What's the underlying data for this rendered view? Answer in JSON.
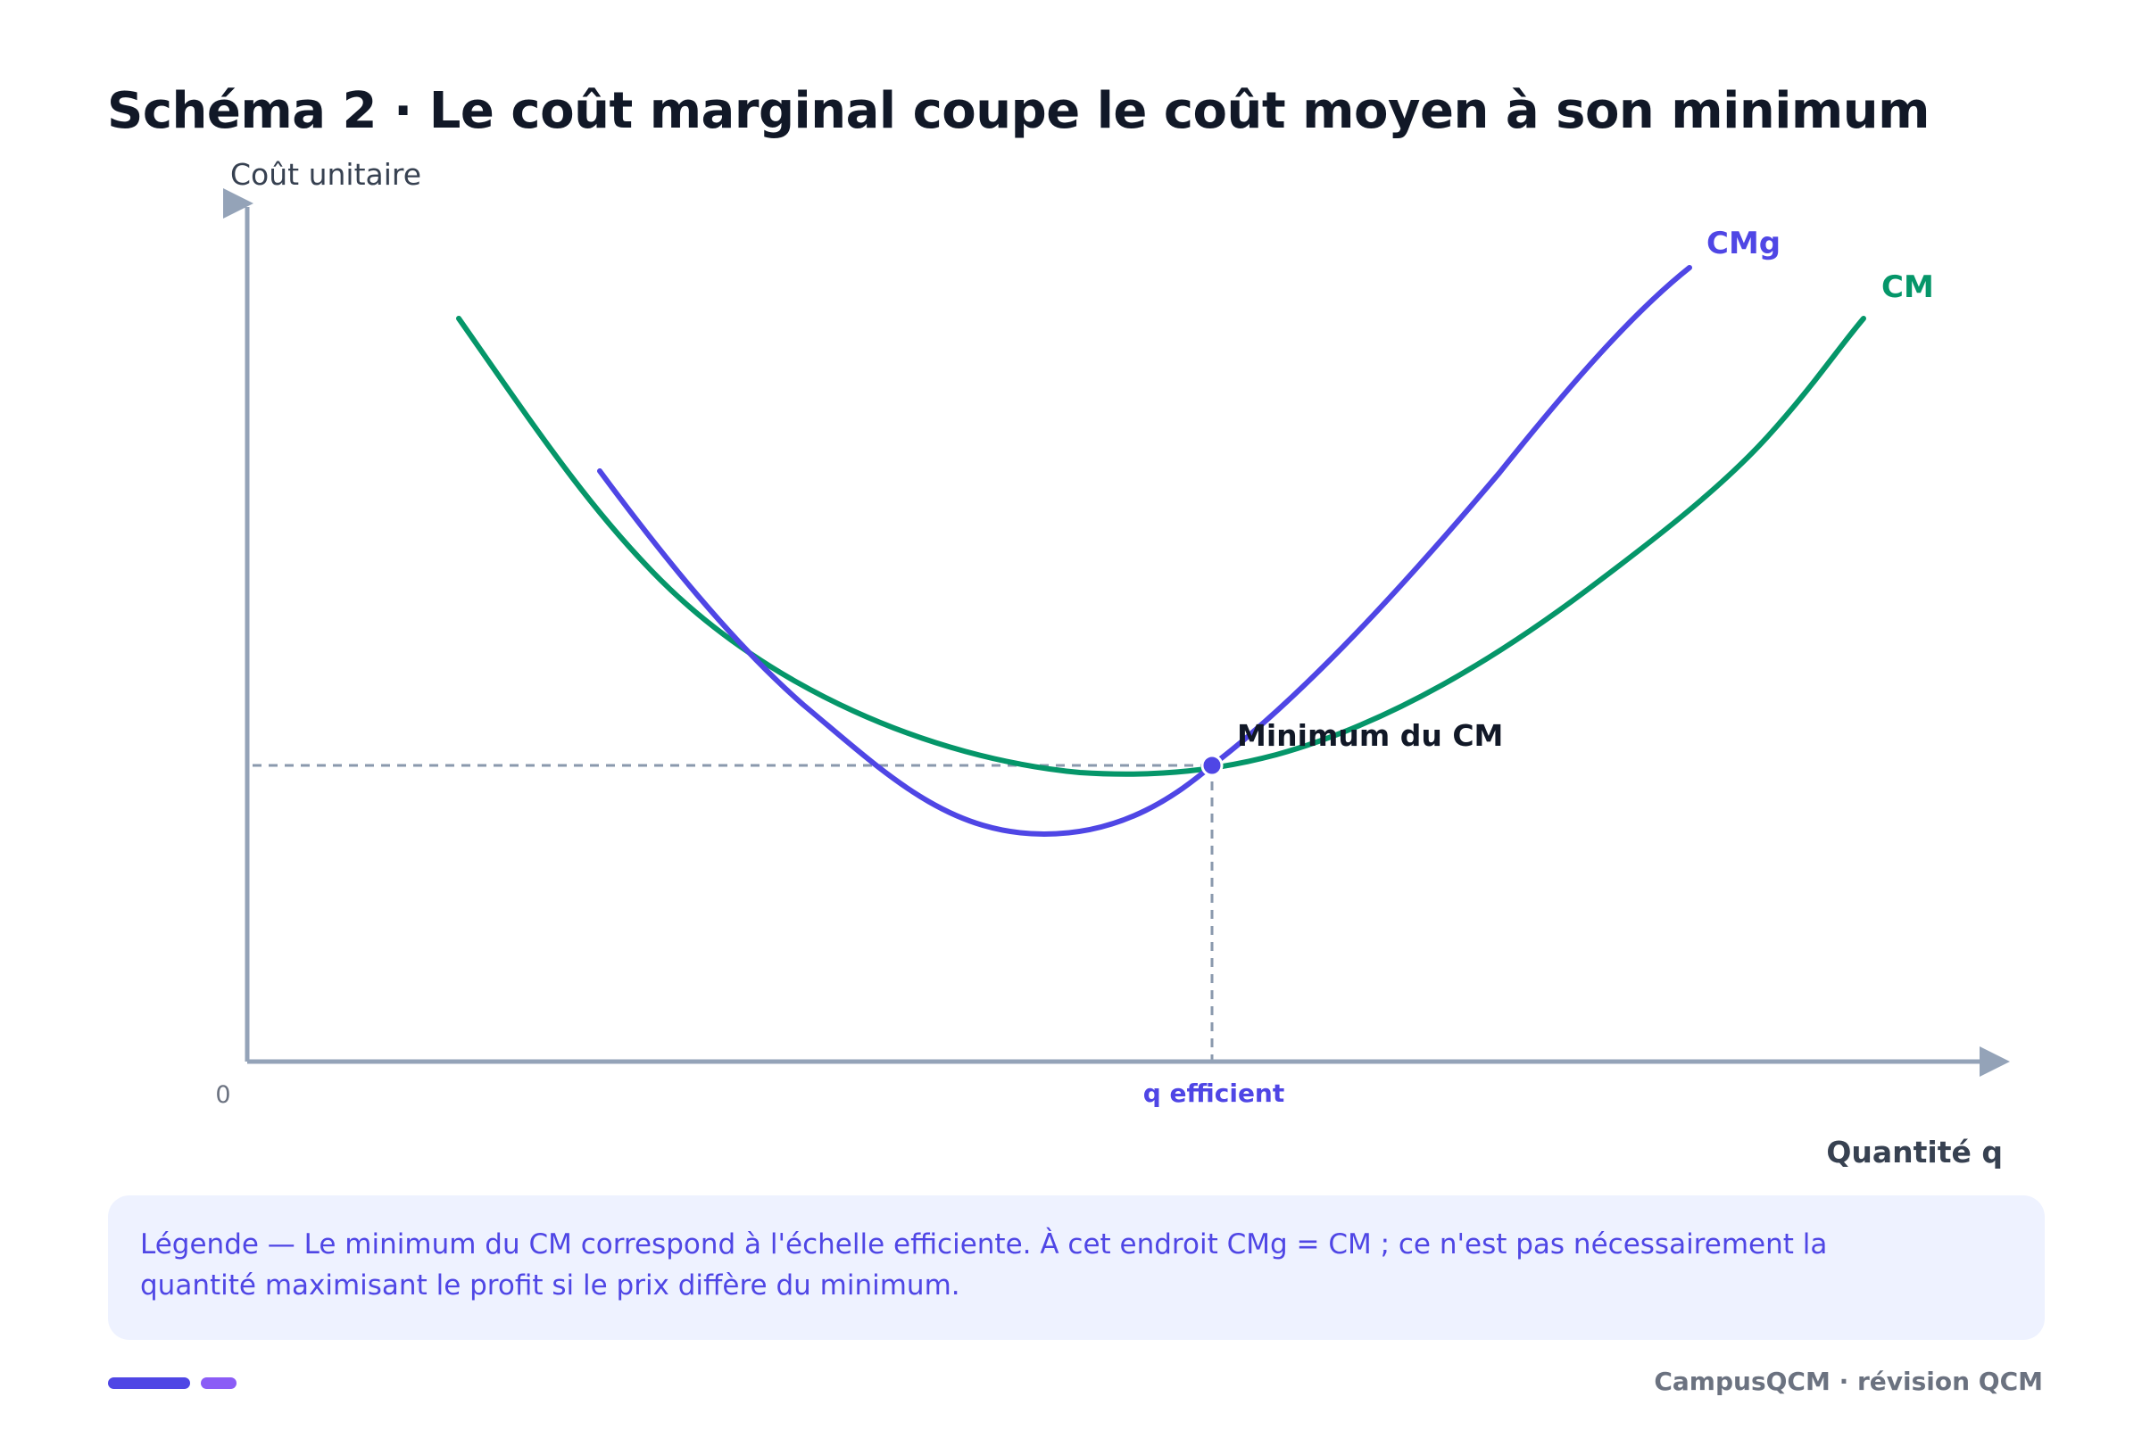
{
  "title": "Schéma 2 · Le coût marginal coupe le coût moyen à son minimum",
  "diagram": {
    "y_axis_label": "Coût unitaire",
    "x_axis_label": "Quantité q",
    "origin_label": "0",
    "x_marker_label": "q efficient",
    "point_label": "Minimum du CM",
    "curves": [
      {
        "name": "CMg",
        "color": "#4f46e5"
      },
      {
        "name": "CM",
        "color": "#059669"
      }
    ]
  },
  "legend": {
    "text": "Légende — Le minimum du CM correspond à l'échelle efficiente. À cet endroit CMg = CM ; ce n'est pas nécessairement la quantité maximisant le profit si le prix diffère du minimum."
  },
  "footer": "CampusQCM · révision QCM",
  "colors": {
    "axis": "#94a3b8",
    "guide": "#8a99ad",
    "accent_primary": "#4f46e5",
    "accent_secondary": "#8b5cf6",
    "cm_curve": "#059669",
    "cmg_curve": "#4f46e5"
  }
}
